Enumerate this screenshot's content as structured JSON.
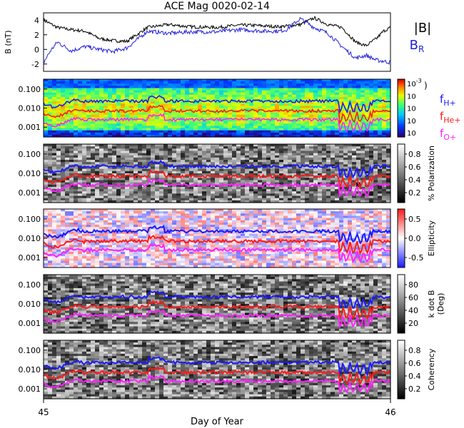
{
  "title": "ACE Mag 0020-02-14",
  "xlabel": "Day of Year",
  "x_ticks": [
    "45",
    "46"
  ],
  "colors": {
    "btotal": "#000000",
    "br": "#2222dd",
    "fH": "#1a1aff",
    "fHe": "#ff1a1a",
    "fO": "#ff22ff"
  },
  "chart_data": [
    {
      "type": "line",
      "panel": "magnetic-field",
      "ylabel": "B (nT)",
      "yticks": [
        "4",
        "2",
        "0",
        "-2"
      ],
      "ylim": [
        -3,
        5
      ],
      "xlim": [
        45,
        46
      ],
      "series": [
        {
          "name": "|B|",
          "color": "#000000",
          "x": [
            45.0,
            45.04,
            45.08,
            45.12,
            45.16,
            45.2,
            45.24,
            45.3,
            45.36,
            45.42,
            45.5,
            45.56,
            45.6,
            45.64,
            45.68,
            45.7,
            45.74,
            45.78,
            45.82,
            45.86,
            45.9,
            45.93,
            45.96,
            45.98,
            46.0
          ],
          "values": [
            4.0,
            3.0,
            2.7,
            2.5,
            1.5,
            1.2,
            1.1,
            3.0,
            3.4,
            3.1,
            3.0,
            3.3,
            3.3,
            3.2,
            3.1,
            3.2,
            3.4,
            4.3,
            3.4,
            3.0,
            1.0,
            0.5,
            1.5,
            2.5,
            3.0
          ]
        },
        {
          "name": "B",
          "sub": "R",
          "color": "#2222dd",
          "x": [
            45.0,
            45.02,
            45.04,
            45.08,
            45.12,
            45.16,
            45.2,
            45.24,
            45.3,
            45.36,
            45.42,
            45.5,
            45.56,
            45.6,
            45.64,
            45.68,
            45.7,
            45.74,
            45.78,
            45.82,
            45.86,
            45.9,
            45.93,
            45.96,
            45.98,
            46.0
          ],
          "values": [
            -1.8,
            -0.2,
            1.0,
            -0.2,
            0.4,
            0.0,
            -0.3,
            0.2,
            2.5,
            2.2,
            2.4,
            2.4,
            2.7,
            2.6,
            2.5,
            2.5,
            2.7,
            4.2,
            3.0,
            2.2,
            0.4,
            -1.2,
            -0.8,
            -1.5,
            -1.6,
            -1.8
          ]
        }
      ]
    },
    {
      "type": "heatmap",
      "panel": "power-spectrum",
      "yticks": [
        "0.100",
        "0.010",
        "0.001"
      ],
      "colorbar_ticks": [
        "10",
        "10",
        "10",
        "10",
        "10"
      ],
      "colorbar_exponents": [
        "-3",
        "",
        "",
        "",
        ""
      ],
      "lines": [
        {
          "name": "f",
          "sub": "H+",
          "color": "#1a1aff"
        },
        {
          "name": "f",
          "sub": "He+",
          "color": "#ff1a1a"
        },
        {
          "name": "f",
          "sub": "O+",
          "color": "#ff22ff"
        }
      ]
    },
    {
      "type": "heatmap",
      "panel": "polarization",
      "colorbar_label": "% Polarization",
      "colorbar_ticks": [
        "0.8",
        "0.6",
        "0.4",
        "0.2"
      ],
      "yticks": [
        "0.100",
        "0.010",
        "0.001"
      ]
    },
    {
      "type": "heatmap",
      "panel": "ellipticity",
      "colorbar_label": "Ellipticity",
      "colorbar_ticks": [
        "0.5",
        "0.0",
        "-0.5"
      ],
      "yticks": [
        "0.100",
        "0.010",
        "0.001"
      ]
    },
    {
      "type": "heatmap",
      "panel": "k-dot-b",
      "colorbar_label": "k dot B",
      "colorbar_label2": "(Deg)",
      "colorbar_ticks": [
        "80",
        "60",
        "40",
        "20"
      ],
      "yticks": [
        "0.100",
        "0.010",
        "0.001"
      ]
    },
    {
      "type": "heatmap",
      "panel": "coherency",
      "colorbar_label": "Coherency",
      "colorbar_ticks": [
        "0.8",
        "0.6",
        "0.4",
        "0.2"
      ],
      "yticks": [
        "0.100",
        "0.010",
        "0.001"
      ]
    }
  ]
}
